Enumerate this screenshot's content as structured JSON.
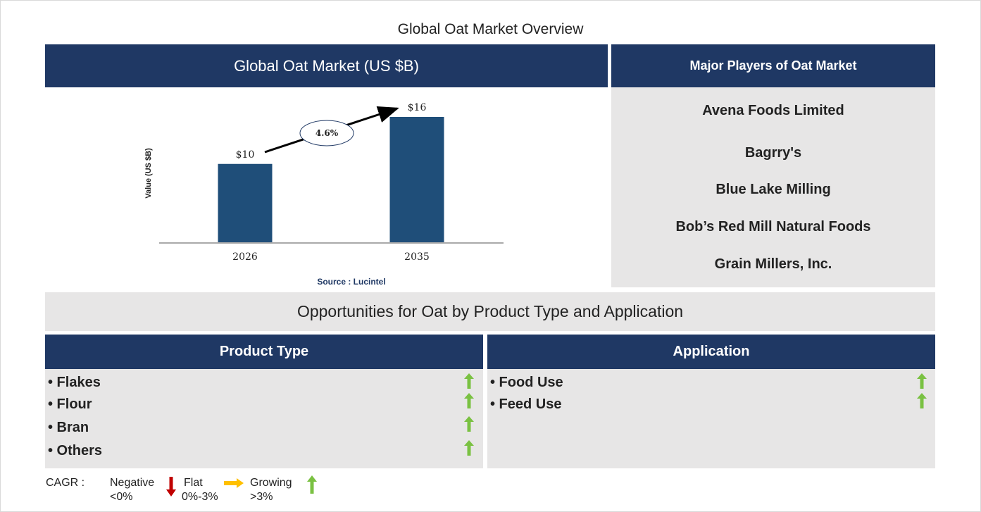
{
  "page_title": "Global Oat Market Overview",
  "chart_header": "Global Oat Market (US $B)",
  "players_header": "Major Players of Oat Market",
  "players": [
    "Avena Foods Limited",
    "Bagrry's",
    "Blue Lake Milling",
    "Bob’s Red Mill Natural Foods",
    "Grain Millers, Inc."
  ],
  "opportunities_title": "Opportunities for Oat by Product Type and Application",
  "product_type": {
    "header": "Product Type",
    "items": [
      "• Flakes",
      "• Flour",
      "• Bran",
      "• Others"
    ]
  },
  "application": {
    "header": "Application",
    "items": [
      "• Food Use",
      "• Feed Use"
    ]
  },
  "legend": {
    "label": "CAGR  :",
    "negative": "Negative",
    "negative_range": "<0%",
    "flat": "Flat",
    "flat_range": "0%-3%",
    "growing": "Growing",
    "growing_range": ">3%"
  },
  "colors": {
    "navy": "#1f3864",
    "bar": "#1f4e79",
    "panel_gray": "#e7e6e6",
    "growth_green": "#7ac142",
    "negative_red": "#c00000",
    "flat_yellow": "#ffc000"
  },
  "chart_data": {
    "type": "bar",
    "categories": [
      "2026",
      "2035"
    ],
    "values": [
      10,
      16
    ],
    "value_labels": [
      "$10",
      "$16"
    ],
    "ylabel": "Value (US $B)",
    "cagr_label": "4.6%",
    "source": "Source : Lucintel",
    "ylim": [
      0,
      16
    ]
  }
}
